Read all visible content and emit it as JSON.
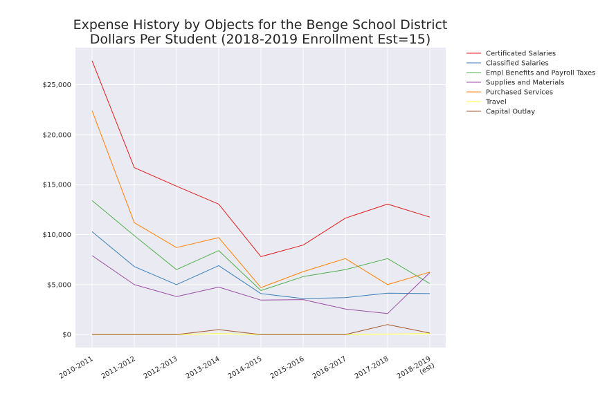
{
  "chart_data": {
    "type": "line",
    "title": [
      "Expense History by Objects for the Benge School District",
      "Dollars Per Student (2018-2019 Enrollment Est=15)"
    ],
    "xlabel": "",
    "ylabel": "",
    "categories": [
      "2010-2011",
      "2011-2012",
      "2012-2013",
      "2013-2014",
      "2014-2015",
      "2015-2016",
      "2016-2017",
      "2017-2018",
      "2018-2019\n(est)"
    ],
    "ylim": [
      -1300,
      28700
    ],
    "yticks": [
      0,
      5000,
      10000,
      15000,
      20000,
      25000
    ],
    "ytick_labels": [
      "$0",
      "$5,000",
      "$10,000",
      "$15,000",
      "$20,000",
      "$25,000"
    ],
    "grid": true,
    "legend_position": "outside-top-right",
    "series": [
      {
        "name": "Certificated Salaries",
        "color": "#e41a1c",
        "values": [
          27400,
          16700,
          14850,
          13050,
          7800,
          8950,
          11650,
          13050,
          11750
        ]
      },
      {
        "name": "Classified Salaries",
        "color": "#377eb8",
        "values": [
          10300,
          6800,
          5000,
          6900,
          4100,
          3600,
          3700,
          4150,
          4100
        ]
      },
      {
        "name": "Empl Benefits and Payroll Taxes",
        "color": "#4daf4a",
        "values": [
          13400,
          9900,
          6500,
          8400,
          4400,
          5800,
          6500,
          7600,
          5100
        ]
      },
      {
        "name": "Supplies and Materials",
        "color": "#984ea3",
        "values": [
          7900,
          5000,
          3800,
          4750,
          3450,
          3500,
          2550,
          2100,
          6200
        ]
      },
      {
        "name": "Purchased Services",
        "color": "#ff7f00",
        "values": [
          22400,
          11200,
          8700,
          9700,
          4700,
          6300,
          7600,
          5000,
          6250
        ]
      },
      {
        "name": "Travel",
        "color": "#ffff33",
        "values": [
          0,
          0,
          0,
          100,
          0,
          0,
          0,
          50,
          100
        ]
      },
      {
        "name": "Capital Outlay",
        "color": "#a65628",
        "values": [
          0,
          0,
          0,
          500,
          0,
          0,
          0,
          1000,
          150
        ]
      }
    ]
  }
}
